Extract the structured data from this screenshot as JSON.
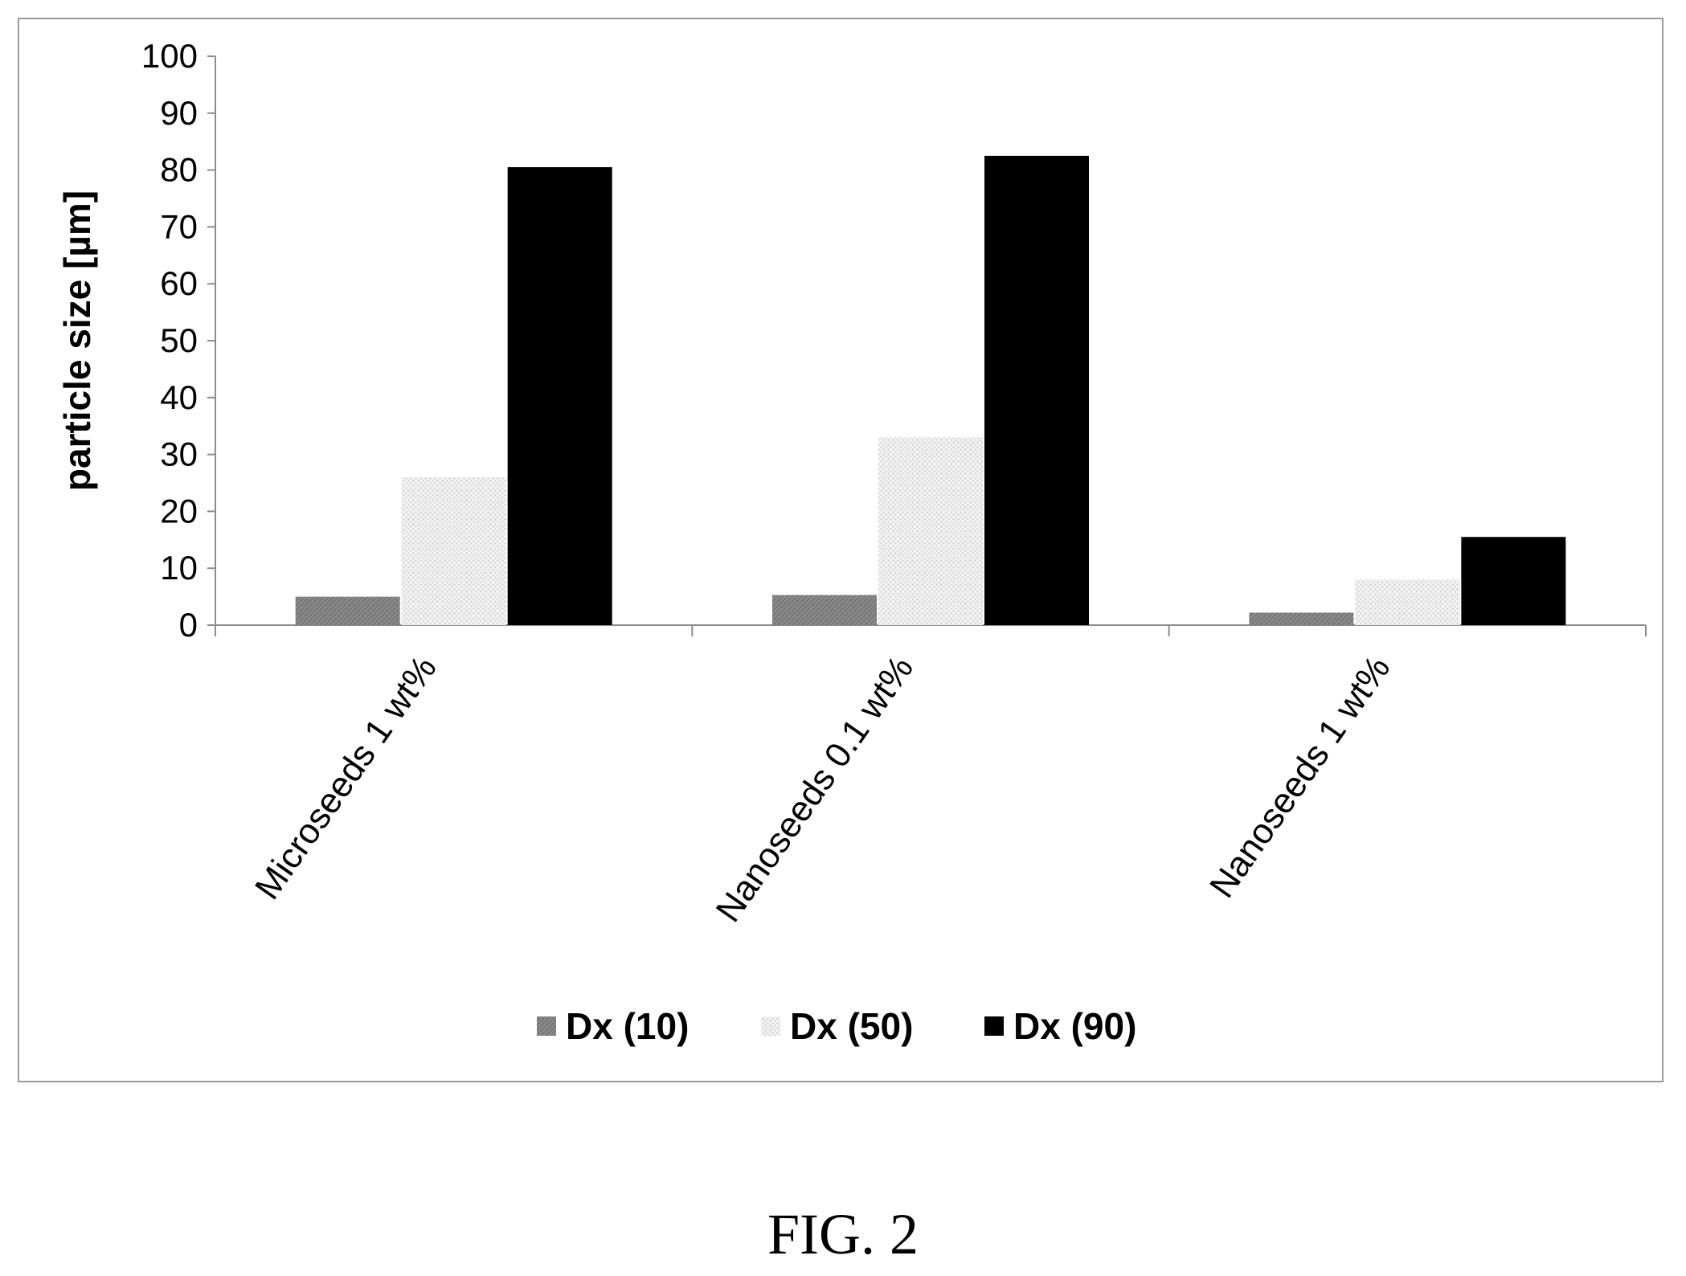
{
  "figure": {
    "caption": "FIG. 2"
  },
  "colors": {
    "dx10": "#8a8a8a",
    "dx50": "#e6e6e6",
    "dx90": "#000000",
    "axis": "#8c8c8c",
    "frame": "#9a9a9a"
  },
  "chart_data": {
    "type": "bar",
    "title": "",
    "xlabel": "",
    "ylabel": "particle size [µm]",
    "ylim": [
      0,
      100
    ],
    "yticks": [
      "0",
      "10",
      "20",
      "30",
      "40",
      "50",
      "60",
      "70",
      "80",
      "90",
      "100"
    ],
    "categories": [
      "Microseeds 1 wt%",
      "Nanoseeds 0.1 wt%",
      "Nanoseeds 1 wt%"
    ],
    "series": [
      {
        "name": "Dx (10)",
        "values": [
          5,
          5.3,
          2.2
        ],
        "color": "#8a8a8a"
      },
      {
        "name": "Dx (50)",
        "values": [
          26,
          33,
          8
        ],
        "color": "#e6e6e6"
      },
      {
        "name": "Dx (90)",
        "values": [
          80.5,
          82.5,
          15.5
        ],
        "color": "#000000"
      }
    ],
    "grid": false,
    "legend_position": "bottom"
  }
}
